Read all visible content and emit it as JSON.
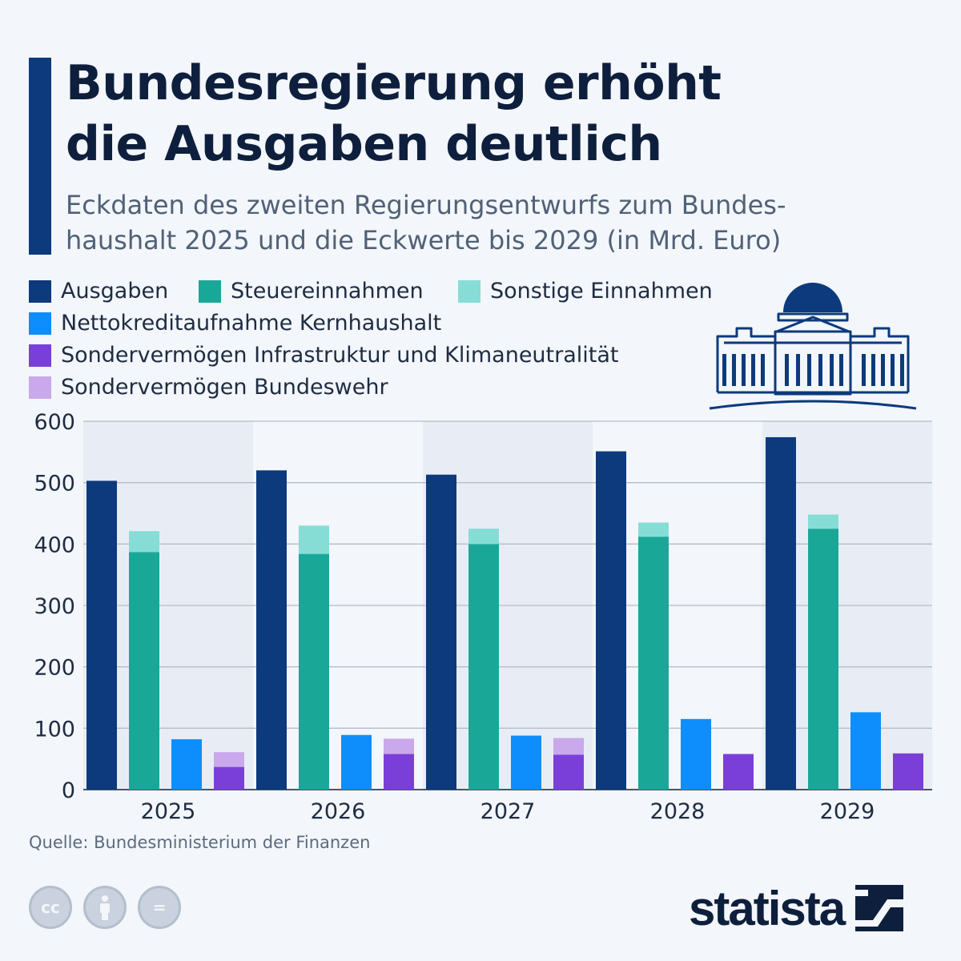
{
  "title_line1": "Bundesregierung erhöht",
  "title_line2": "die Ausgaben deutlich",
  "subtitle_line1": "Eckdaten des zweiten Regierungsentwurfs zum Bundes-",
  "subtitle_line2": "haushalt 2025 und die Eckwerte bis 2029 (in Mrd. Euro)",
  "source": "Quelle: Bundesministerium der Finanzen",
  "brand": "statista",
  "license_icons": [
    "cc-icon",
    "by-icon",
    "nd-icon"
  ],
  "license_labels": {
    "cc": "cc",
    "nd": "="
  },
  "legend": [
    {
      "label": "Ausgaben",
      "color": "#0c3a7c"
    },
    {
      "label": "Steuereinnahmen",
      "color": "#19a898"
    },
    {
      "label": "Sonstige Einnahmen",
      "color": "#86ddd6"
    },
    {
      "label": "Nettokreditaufnahme Kernhaushalt",
      "color": "#0d8efc"
    },
    {
      "label": "Sondervermögen Infrastruktur und Klimaneutralität",
      "color": "#7b3fd9"
    },
    {
      "label": "Sondervermögen Bundeswehr",
      "color": "#c9a8ec"
    }
  ],
  "chart_data": {
    "type": "bar",
    "categories": [
      "2025",
      "2026",
      "2027",
      "2028",
      "2029"
    ],
    "ylim": [
      0,
      600
    ],
    "yticks": [
      0,
      100,
      200,
      300,
      400,
      500,
      600
    ],
    "grid": true,
    "series": [
      {
        "name": "Ausgaben",
        "group": "ausgaben",
        "color": "#0c3a7c",
        "values": [
          503,
          520,
          513,
          551,
          574
        ]
      },
      {
        "name": "Steuereinnahmen",
        "group": "einnahmen",
        "color": "#19a898",
        "values": [
          387,
          384,
          400,
          412,
          425
        ]
      },
      {
        "name": "Sonstige Einnahmen",
        "group": "einnahmen",
        "color": "#86ddd6",
        "values": [
          34,
          46,
          25,
          23,
          23
        ]
      },
      {
        "name": "Nettokreditaufnahme Kernhaushalt",
        "group": "kredit",
        "color": "#0d8efc",
        "values": [
          82,
          89,
          88,
          115,
          126
        ]
      },
      {
        "name": "Sondervermögen Infrastruktur und Klimaneutralität",
        "group": "sonder",
        "color": "#7b3fd9",
        "values": [
          37,
          58,
          57,
          58,
          59
        ]
      },
      {
        "name": "Sondervermögen Bundeswehr",
        "group": "sonder",
        "color": "#c9a8ec",
        "values": [
          24,
          25,
          27,
          null,
          null
        ]
      }
    ]
  }
}
